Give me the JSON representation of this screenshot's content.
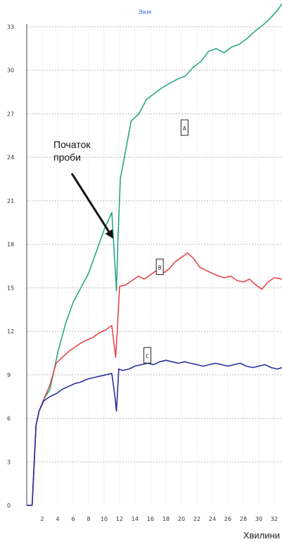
{
  "chart_data": {
    "type": "line",
    "title": "Экм",
    "xlabel": "Хвилини",
    "ylabel": "",
    "xlim": [
      0,
      33
    ],
    "ylim": [
      0,
      33
    ],
    "x_ticks": [
      2,
      4,
      6,
      8,
      10,
      12,
      14,
      16,
      18,
      20,
      22,
      24,
      26,
      28,
      30,
      32
    ],
    "x_tick_labels": [
      "2",
      "4",
      "6",
      "8",
      "10",
      "12",
      "14",
      "16",
      "18",
      "20",
      "22",
      "24",
      "26",
      "28",
      "30",
      "32"
    ],
    "y_ticks": [
      0,
      3,
      6,
      9,
      12,
      15,
      18,
      21,
      24,
      27,
      30,
      33
    ],
    "y_tick_labels": [
      "0",
      "3",
      "6",
      "9",
      "12",
      "15",
      "18",
      "21",
      "24",
      "27",
      "30",
      "33"
    ],
    "grid": true,
    "annotation": {
      "lines": [
        "Початок",
        "проби"
      ],
      "target": {
        "x": 11.2,
        "y": 18
      }
    },
    "series": [
      {
        "name": "A",
        "color": "#2aa58a",
        "label_at": {
          "x": 20.4,
          "y": 26
        },
        "x": [
          0,
          0.7,
          1.2,
          1.6,
          2.2,
          3,
          4,
          5,
          6,
          7,
          8,
          9,
          10,
          11,
          11.6,
          11.8,
          12.1,
          12.8,
          13.5,
          14.5,
          15.5,
          16.5,
          17.5,
          18.5,
          19.5,
          20.5,
          21.5,
          22.5,
          23.5,
          24.5,
          25.5,
          26.5,
          27.5,
          28.5,
          29.5,
          30.5,
          31.5,
          32.5,
          33
        ],
        "y": [
          0,
          0,
          5.5,
          6.5,
          7.3,
          8,
          10.5,
          12.5,
          14,
          15,
          16,
          17.5,
          19,
          20.2,
          14.8,
          18.5,
          22.5,
          24.5,
          26.5,
          27,
          28,
          28.4,
          28.8,
          29.1,
          29.4,
          29.6,
          30.2,
          30.6,
          31.3,
          31.5,
          31.2,
          31.6,
          31.8,
          32.2,
          32.7,
          33.1,
          33.6,
          34.2,
          34.6
        ]
      },
      {
        "name": "B",
        "color": "#e04848",
        "label_at": {
          "x": 17.2,
          "y": 16.4
        },
        "x": [
          0,
          0.7,
          1.2,
          1.6,
          2.2,
          3,
          3.8,
          4.6,
          5.4,
          6.2,
          7,
          7.8,
          8.6,
          9.4,
          10.2,
          11,
          11.5,
          11.7,
          12,
          12.8,
          13.6,
          14.4,
          15.2,
          16,
          16.8,
          17.6,
          18.4,
          19.2,
          20,
          20.8,
          21.6,
          22.4,
          23.2,
          24,
          24.8,
          25.6,
          26.4,
          27.2,
          28,
          28.8,
          29.6,
          30.4,
          31.2,
          32,
          33
        ],
        "y": [
          0,
          0,
          5.5,
          6.5,
          7.3,
          8.3,
          9.8,
          10.2,
          10.6,
          10.9,
          11.2,
          11.4,
          11.6,
          11.9,
          12.1,
          12.4,
          10.2,
          12,
          15.1,
          15.2,
          15.5,
          15.8,
          15.6,
          15.9,
          16.2,
          16.0,
          16.3,
          16.8,
          17.1,
          17.4,
          17.0,
          16.4,
          16.2,
          16.0,
          15.8,
          15.7,
          15.8,
          15.5,
          15.4,
          15.6,
          15.2,
          14.9,
          15.4,
          15.7,
          15.6
        ]
      },
      {
        "name": "C",
        "color": "#2b2f9e",
        "label_at": {
          "x": 15.6,
          "y": 10.3
        },
        "x": [
          0,
          0.7,
          1.2,
          1.6,
          2.2,
          3,
          3.8,
          4.6,
          5.4,
          6.2,
          7,
          7.8,
          8.6,
          9.4,
          10.2,
          11,
          11.4,
          11.6,
          11.9,
          12.4,
          13.2,
          14,
          14.8,
          15.6,
          16.4,
          17.2,
          18,
          18.8,
          19.6,
          20.4,
          21.2,
          22,
          22.8,
          23.6,
          24.4,
          25.2,
          26,
          26.8,
          27.6,
          28.4,
          29.2,
          30,
          30.8,
          31.6,
          32.4,
          33
        ],
        "y": [
          0,
          0,
          5.5,
          6.5,
          7.2,
          7.5,
          7.7,
          8.0,
          8.2,
          8.4,
          8.5,
          8.7,
          8.8,
          8.9,
          9.0,
          9.1,
          7.5,
          6.5,
          9.4,
          9.3,
          9.4,
          9.6,
          9.7,
          9.8,
          9.7,
          9.9,
          10.0,
          9.9,
          9.8,
          9.9,
          9.8,
          9.7,
          9.6,
          9.7,
          9.8,
          9.7,
          9.6,
          9.7,
          9.8,
          9.6,
          9.5,
          9.6,
          9.7,
          9.5,
          9.4,
          9.5
        ]
      }
    ]
  }
}
